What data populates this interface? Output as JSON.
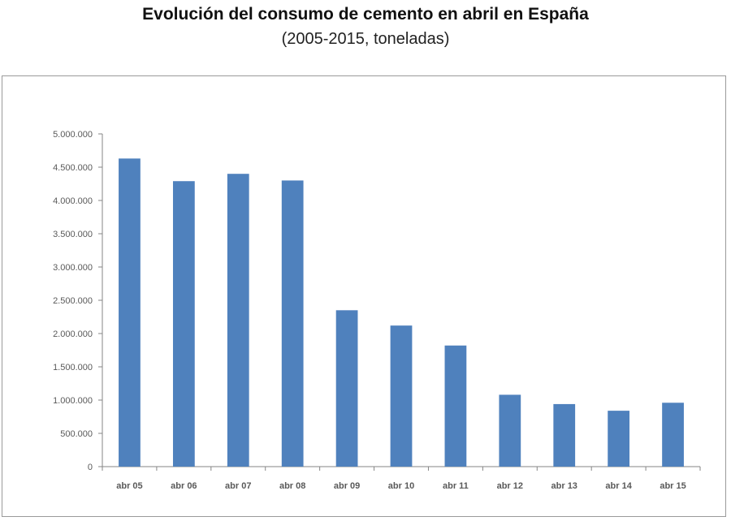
{
  "chart_data": {
    "type": "bar",
    "title": "Evolución del consumo de cemento en abril en España",
    "subtitle": "(2005-2015, toneladas)",
    "xlabel": "",
    "ylabel": "",
    "categories": [
      "abr 05",
      "abr 06",
      "abr 07",
      "abr 08",
      "abr 09",
      "abr 10",
      "abr 11",
      "abr 12",
      "abr 13",
      "abr 14",
      "abr 15"
    ],
    "values": [
      4630000,
      4290000,
      4400000,
      4300000,
      2350000,
      2120000,
      1820000,
      1080000,
      940000,
      840000,
      960000
    ],
    "ylim": [
      0,
      5000000
    ],
    "yticks": [
      0,
      500000,
      1000000,
      1500000,
      2000000,
      2500000,
      3000000,
      3500000,
      4000000,
      4500000,
      5000000
    ],
    "ytick_labels": [
      "0",
      "500.000",
      "1.000.000",
      "1.500.000",
      "2.000.000",
      "2.500.000",
      "3.000.000",
      "3.500.000",
      "4.000.000",
      "4.500.000",
      "5.000.000"
    ],
    "grid": false,
    "bar_color": "#4F81BD"
  }
}
